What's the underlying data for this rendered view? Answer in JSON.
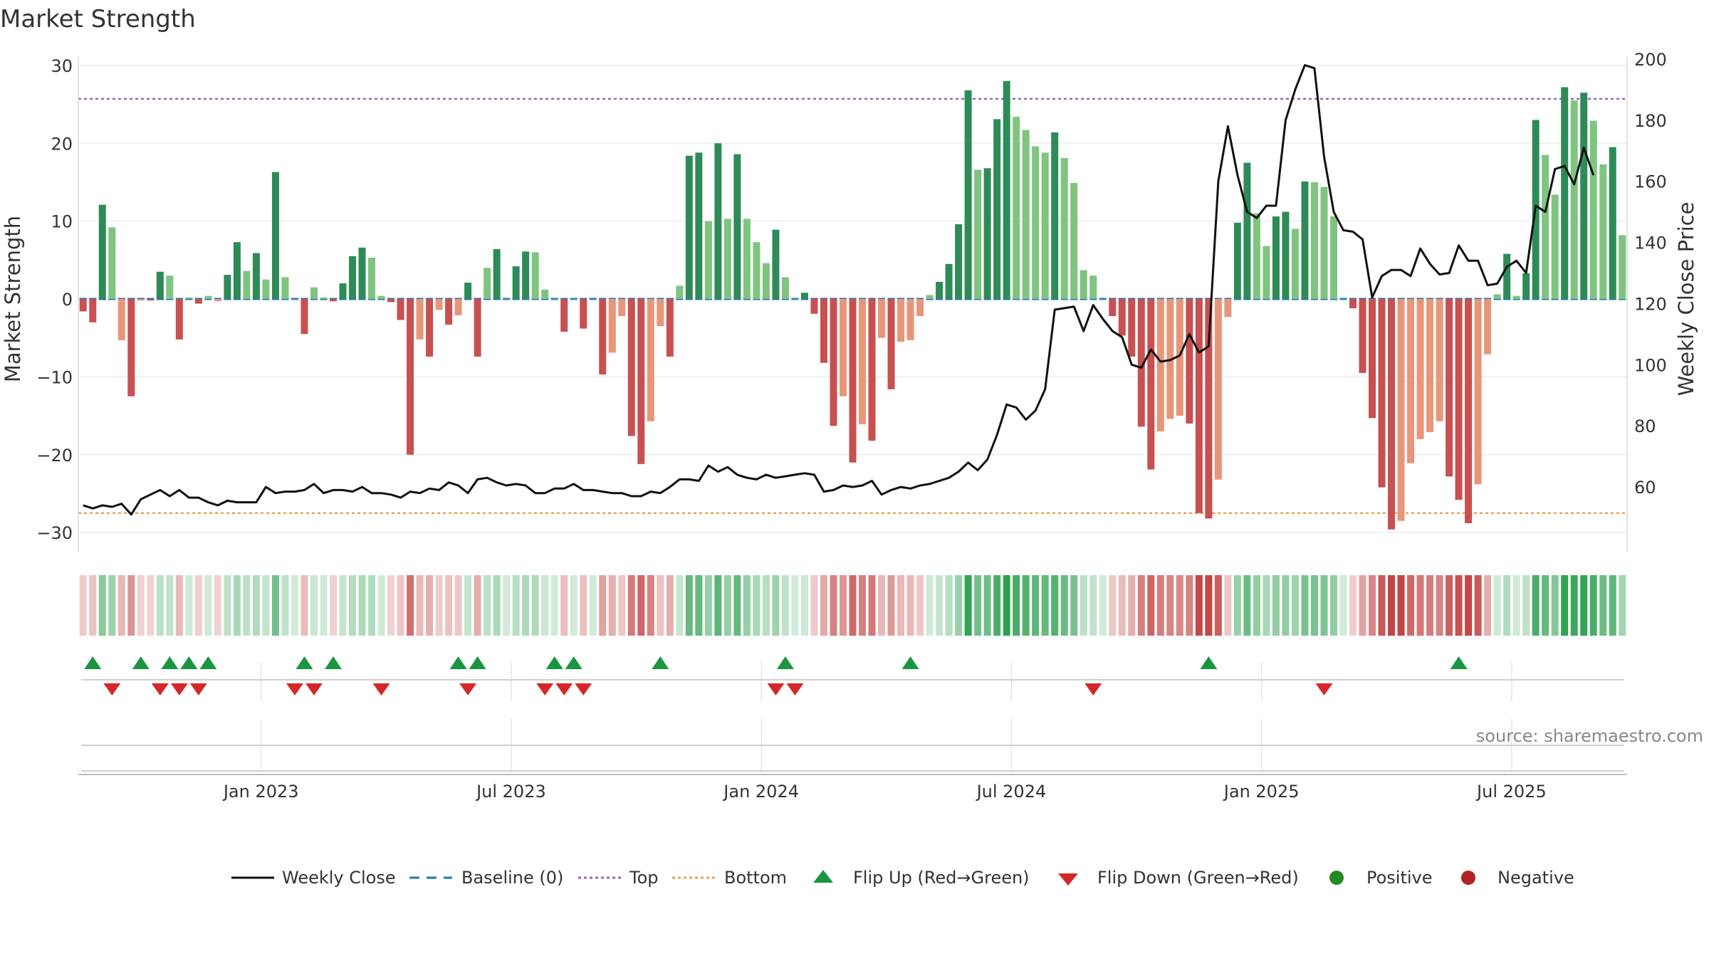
{
  "chart_data": {
    "type": "bar",
    "title": "Market Strength",
    "ylabel": "Market Strength",
    "y2label": "Weekly Close Price",
    "ylim": [
      -32,
      32
    ],
    "y2lim": [
      40,
      203
    ],
    "yticks": [
      -30,
      -20,
      -10,
      0,
      10,
      20,
      30
    ],
    "y2ticks": [
      60,
      80,
      100,
      120,
      140,
      160,
      180,
      200
    ],
    "grid": true,
    "top_level": 25.7,
    "bottom_level": -27.5,
    "ytick_labels": [
      "−30",
      "−20",
      "−10",
      "0",
      "10",
      "20",
      "30"
    ],
    "y2tick_labels": [
      "60",
      "80",
      "100",
      "120",
      "140",
      "160",
      "180",
      "200"
    ],
    "date_ticks": [
      {
        "week": 19,
        "label": "Jan 2023"
      },
      {
        "week": 45,
        "label": "Jul 2023"
      },
      {
        "week": 71,
        "label": "Jan 2024"
      },
      {
        "week": 97,
        "label": "Jul 2024"
      },
      {
        "week": 123,
        "label": "Jan 2025"
      },
      {
        "week": 149,
        "label": "Jul 2025"
      }
    ],
    "strength": [
      -1.6,
      -3,
      12.1,
      9.2,
      -5.3,
      -12.5,
      -0.2,
      -0.2,
      3.5,
      3,
      -5.2,
      0.2,
      -0.6,
      0.4,
      -0.3,
      3.1,
      7.3,
      3.6,
      5.9,
      2.5,
      16.3,
      2.8,
      0,
      -4.5,
      1.5,
      0.2,
      -0.3,
      2,
      5.5,
      6.6,
      5.3,
      0.4,
      -0.4,
      -2.7,
      -20,
      -5.2,
      -7.4,
      -1.4,
      -3.3,
      -2.1,
      2.1,
      -7.4,
      4,
      6.4,
      0,
      4.2,
      6.1,
      6,
      1.2,
      0,
      -4.2,
      0,
      -3.8,
      0,
      -9.7,
      -6.9,
      -2.2,
      -17.6,
      -21.2,
      -15.7,
      -3.5,
      -7.4,
      1.7,
      18.4,
      18.8,
      10,
      20,
      10.3,
      18.6,
      10.3,
      7.3,
      4.6,
      8.9,
      2.8,
      0,
      0.8,
      -1.9,
      -8.2,
      -16.3,
      -12.5,
      -21,
      -16.1,
      -18.2,
      -5,
      -11.6,
      -5.5,
      -5.3,
      -2.2,
      0.5,
      2.2,
      4.5,
      9.6,
      26.8,
      16.6,
      16.8,
      23.1,
      28,
      23.4,
      21.7,
      19.6,
      18.8,
      21.4,
      18.1,
      14.9,
      3.7,
      3,
      0,
      -2.2,
      -4.7,
      -7.4,
      -16.4,
      -21.9,
      -17,
      -15.4,
      -15,
      -16,
      -27.5,
      -28.2,
      -23.2,
      -2.3,
      9.8,
      17.5,
      11,
      6.8,
      10.6,
      11.2,
      9,
      15.1,
      15,
      14.4,
      10.6,
      0,
      -1.2,
      -9.5,
      -15.3,
      -24.2,
      -29.6,
      -28.5,
      -21.1,
      -18,
      -17.1,
      -15.7,
      -22.8,
      -25.8,
      -28.8,
      -23.8,
      -7.1,
      0.6,
      5.8,
      0.4,
      3.3,
      23,
      18.5,
      13.4,
      27.2,
      25.5,
      26.5,
      22.9,
      17.3,
      19.5,
      8.2
    ],
    "weekly_close": [
      54,
      53,
      54,
      53.5,
      54.5,
      51,
      56,
      57.5,
      59,
      57,
      59,
      56.5,
      56.5,
      55,
      54,
      55.5,
      55,
      55,
      55,
      60,
      58,
      58.5,
      58.5,
      59,
      61,
      58,
      59,
      59,
      58.5,
      60,
      58,
      58,
      57.5,
      56.5,
      58.5,
      58,
      59.5,
      59,
      61.5,
      60.5,
      58,
      62.5,
      63,
      61.5,
      60.5,
      61,
      60.5,
      58,
      58,
      59.5,
      59.5,
      61,
      59,
      59,
      58.5,
      58,
      58,
      57,
      57,
      58.5,
      58,
      60,
      62.5,
      62.5,
      62,
      67,
      65,
      66.5,
      64,
      63,
      62.5,
      64,
      63,
      63.5,
      64,
      64.5,
      64,
      58.5,
      59,
      60.5,
      60,
      60.5,
      62,
      57.5,
      59,
      60,
      59.5,
      60.5,
      61,
      62,
      63,
      65,
      68,
      65.5,
      69,
      77,
      87,
      86,
      82,
      85,
      92,
      118,
      118.5,
      119,
      111,
      119.5,
      115,
      111,
      109,
      100,
      99,
      105,
      101,
      101.5,
      103,
      110,
      104,
      106,
      160,
      178,
      162,
      150,
      148,
      152,
      152,
      180,
      190,
      198,
      197,
      168,
      150,
      144,
      143.5,
      141,
      122,
      129,
      131,
      131,
      129,
      138,
      133,
      129.5,
      130,
      139,
      134,
      134,
      126,
      126.5,
      132,
      134,
      130,
      152,
      150,
      164,
      165,
      159,
      171,
      162
    ]
  },
  "flip_up_weeks": [
    1,
    6,
    9,
    11,
    13,
    23,
    26,
    39,
    41,
    49,
    51,
    60,
    73,
    86,
    117,
    143
  ],
  "flip_down_weeks": [
    3,
    8,
    10,
    12,
    22,
    24,
    31,
    40,
    48,
    50,
    52,
    72,
    74,
    105,
    129
  ],
  "legend": {
    "weekly_close": "Weekly Close",
    "baseline": "Baseline (0)",
    "top": "Top",
    "bottom": "Bottom",
    "flip_up": "Flip Up (Red→Green)",
    "flip_down": "Flip Down (Green→Red)",
    "positive": "Positive",
    "negative": "Negative"
  },
  "source": "source: sharemaestro.com",
  "colors": {
    "pos_strong": "#2e8b57",
    "pos_light": "#7fc47f",
    "neg_strong": "#c95050",
    "neg_light": "#e8967a",
    "line": "#111111",
    "top": "#9467bd",
    "bottom": "#f0a050",
    "baseline": "#1f77b4",
    "flip_up": "#1a9641",
    "flip_down": "#d62728",
    "positive": "#228b22",
    "negative": "#b22222"
  }
}
